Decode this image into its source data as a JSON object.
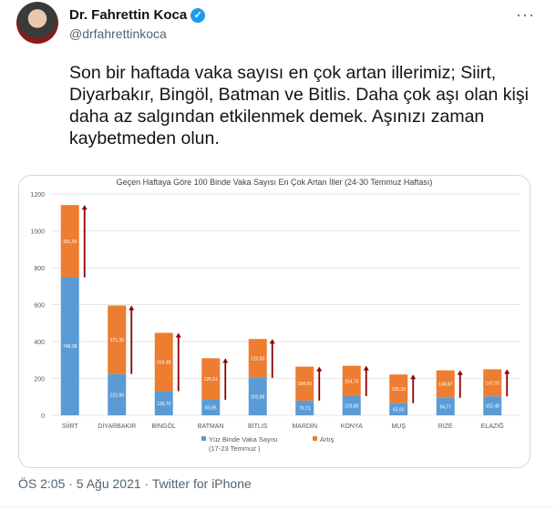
{
  "tweet": {
    "author_name": "Dr. Fahrettin Koca",
    "handle": "@drfahrettinkoca",
    "more_icon": "ellipsis-icon",
    "text": "Son bir haftada vaka sayısı en çok artan illerimiz; Siirt, Diyarbakır, Bingöl, Batman ve Bitlis. Daha çok aşı olan kişi daha az salgından etkilenmek demek. Aşınızı zaman kaybetmeden olun.",
    "footer": "ÖS 2:05 · 5 Ağu 2021 · Twitter for iPhone"
  },
  "chart_data": {
    "type": "bar",
    "stacked": true,
    "title": "Geçen Haftaya Göre 100 Binde Vaka Sayısı En Çok Artan İller (24-30 Temmuz Haftası)",
    "categories": [
      "SİİRT",
      "DİYARBAKIR",
      "BİNGÖL",
      "BATMAN",
      "BİTLİS",
      "MARDİN",
      "KONYA",
      "MUŞ",
      "RİZE",
      "ELAZIĞ"
    ],
    "series": [
      {
        "name": "Yüz Binde Vaka Sayısı (17-23 Temmuz )",
        "color": "#5b9bd5",
        "values": [
          748.38,
          223.94,
          130.7,
          83.95,
          202.85,
          79.71,
          103.8,
          65.92,
          94.77,
          102.48
        ],
        "labels": [
          "748,38",
          "223,94",
          "130,70",
          "83,95",
          "202,85",
          "79,71",
          "103,80",
          "65,92",
          "94,77",
          "102,48"
        ]
      },
      {
        "name": "Artış",
        "color": "#ed7d31",
        "values": [
          391.55,
          371.35,
          316.48,
          225.51,
          210.83,
          184.0,
          164.76,
          155.32,
          148.87,
          147.03
        ],
        "labels": [
          "391,55",
          "371,35",
          "316,48",
          "225,51",
          "210,83",
          "184,00",
          "164,76",
          "155,32",
          "148,87",
          "147,03"
        ]
      }
    ],
    "yticks": [
      "0",
      "200",
      "400",
      "600",
      "800",
      "1000",
      "1200"
    ],
    "ylim": [
      0,
      1200
    ],
    "grid": true,
    "legend": "bottom",
    "arrow_color": "#8b0000"
  }
}
